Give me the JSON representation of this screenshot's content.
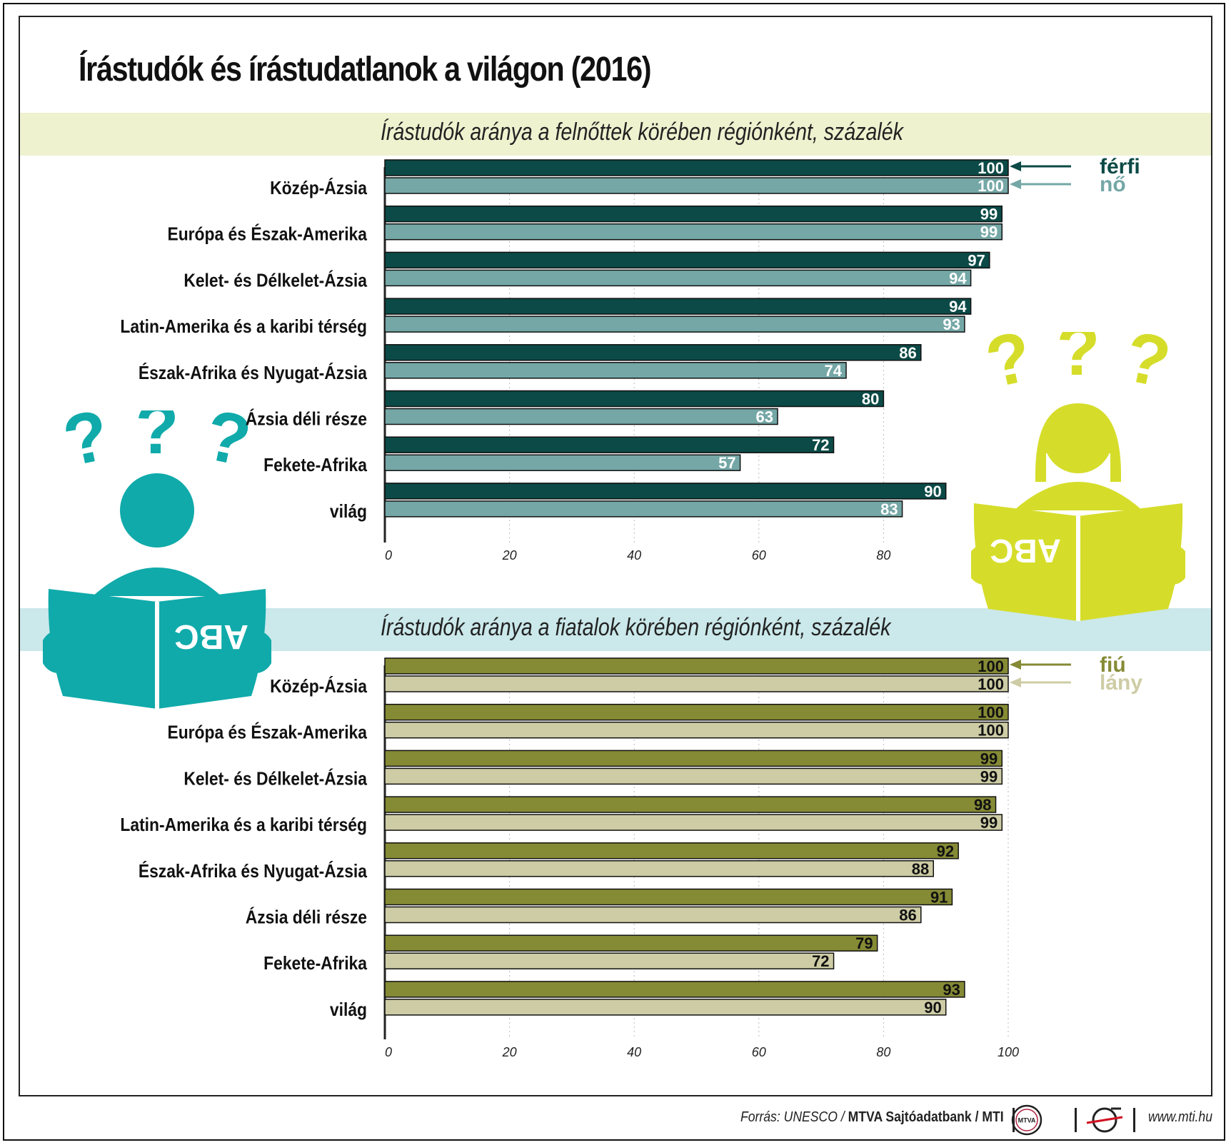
{
  "title": "Írástudók és írástudatlanok a világon (2016)",
  "colors": {
    "adult_male": "#0b4a46",
    "adult_female": "#74a7a6",
    "youth_male": "#858a35",
    "youth_female": "#cdcca5",
    "band_top": "#eef2cf",
    "band_bottom": "#cbe8ea",
    "figure_teal": "#10aaaa",
    "figure_lime": "#d5dd2a"
  },
  "figures": {
    "left": {
      "icon": "reading-boy-icon",
      "question_marks": "???",
      "book_text": "ABC"
    },
    "right": {
      "icon": "reading-girl-icon",
      "question_marks": "???",
      "book_text": "ABC"
    }
  },
  "chart_data": [
    {
      "type": "bar",
      "orientation": "horizontal",
      "title": "Írástudók aránya a felnőttek körében régiónként, százalék",
      "categories": [
        "Közép-Ázsia",
        "Európa és Észak-Amerika",
        "Kelet- és Délkelet-Ázsia",
        "Latin-Amerika és a karibi térség",
        "Észak-Afrika és Nyugat-Ázsia",
        "Ázsia déli része",
        "Fekete-Afrika",
        "világ"
      ],
      "series": [
        {
          "name": "férfi",
          "values": [
            100,
            99,
            97,
            94,
            86,
            80,
            72,
            90
          ]
        },
        {
          "name": "nő",
          "values": [
            100,
            99,
            94,
            93,
            74,
            63,
            57,
            83
          ]
        }
      ],
      "xlim": [
        0,
        100
      ],
      "ticks": [
        "0",
        "20",
        "40",
        "60",
        "80"
      ],
      "grid": true,
      "legend": "right, arrows pointing to first row"
    },
    {
      "type": "bar",
      "orientation": "horizontal",
      "title": "Írástudók aránya a fiatalok körében régiónként, százalék",
      "categories": [
        "Közép-Ázsia",
        "Európa és Észak-Amerika",
        "Kelet- és Délkelet-Ázsia",
        "Latin-Amerika és a karibi térség",
        "Észak-Afrika és Nyugat-Ázsia",
        "Ázsia déli része",
        "Fekete-Afrika",
        "világ"
      ],
      "series": [
        {
          "name": "fiú",
          "values": [
            100,
            100,
            99,
            98,
            92,
            91,
            79,
            93
          ]
        },
        {
          "name": "lány",
          "values": [
            100,
            100,
            99,
            99,
            88,
            86,
            72,
            90
          ]
        }
      ],
      "xlim": [
        0,
        100
      ],
      "ticks": [
        "0",
        "20",
        "40",
        "60",
        "80",
        "100"
      ],
      "grid": true,
      "legend": "right, arrows pointing to first row"
    }
  ],
  "footer": {
    "source_prefix": "Forrás: UNESCO / ",
    "source_bold": "MTVA Sajtóadatbank / MTI",
    "mtva_logo_text": "MTVA",
    "url": "www.mti.hu"
  }
}
